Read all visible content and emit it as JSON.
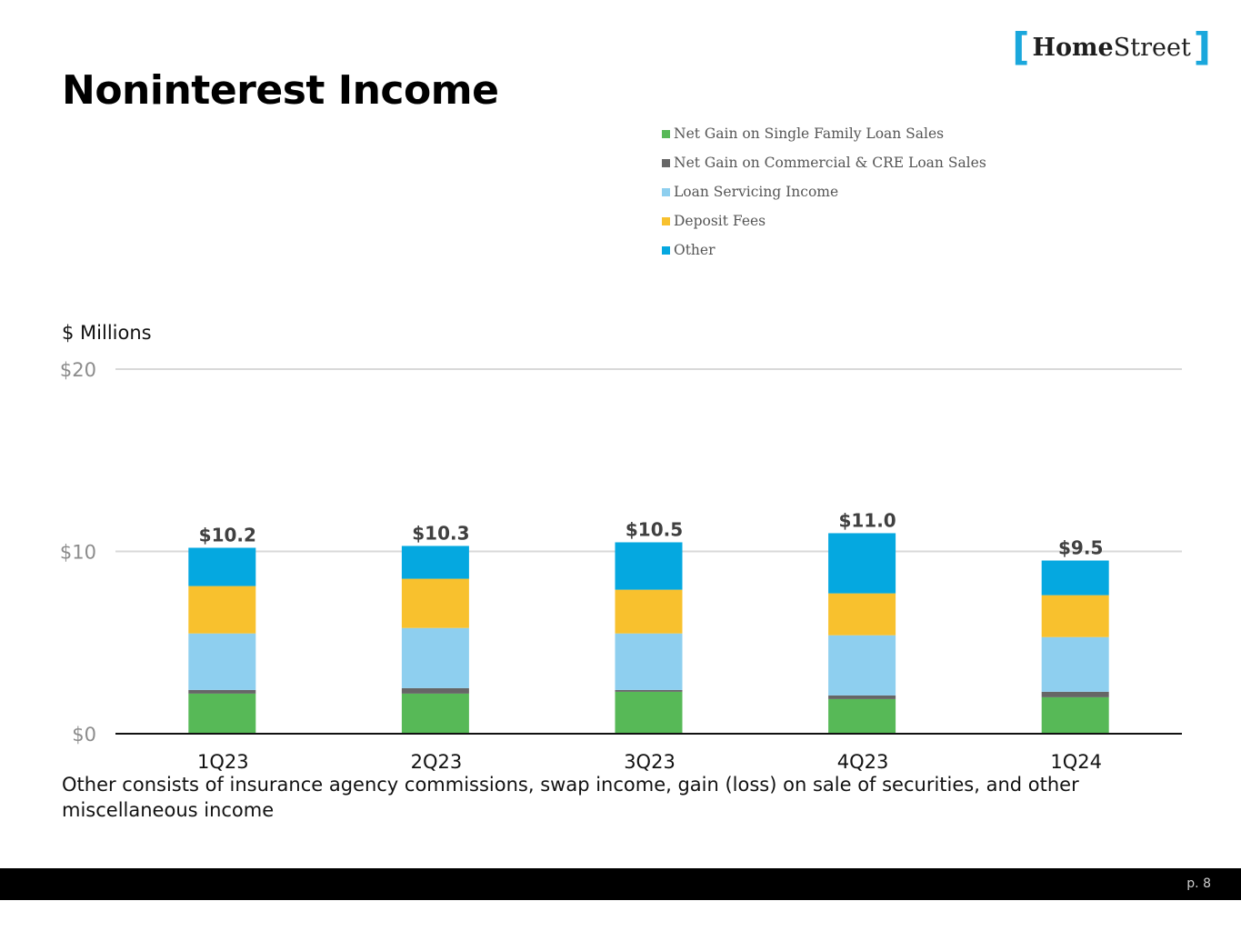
{
  "logo": {
    "left_bracket": "[",
    "part1": "Home",
    "part2": "Street",
    "right_bracket": "]"
  },
  "title": "Noninterest Income",
  "units_label": "$ Millions",
  "note": "Other consists of insurance agency commissions, swap income, gain (loss) on sale of securities, and other miscellaneous income",
  "footer": {
    "page": "p. 8"
  },
  "chart_data": {
    "type": "bar",
    "stacked": true,
    "categories": [
      "1Q23",
      "2Q23",
      "3Q23",
      "4Q23",
      "1Q24"
    ],
    "series": [
      {
        "name": "Net Gain on Single Family Loan Sales",
        "color": "#57b957",
        "values": [
          2.2,
          2.2,
          2.3,
          1.9,
          2.0
        ]
      },
      {
        "name": "Net Gain on Commercial & CRE Loan Sales",
        "color": "#666666",
        "values": [
          0.2,
          0.3,
          0.1,
          0.2,
          0.3
        ]
      },
      {
        "name": "Loan Servicing Income",
        "color": "#8ecfef",
        "values": [
          3.1,
          3.3,
          3.1,
          3.3,
          3.0
        ]
      },
      {
        "name": "Deposit Fees",
        "color": "#f8c12e",
        "values": [
          2.6,
          2.7,
          2.4,
          2.3,
          2.3
        ]
      },
      {
        "name": "Other",
        "color": "#05a8e0",
        "values": [
          2.1,
          1.8,
          2.6,
          3.3,
          1.9
        ]
      }
    ],
    "totals": [
      "$10.2",
      "$10.3",
      "$10.5",
      "$11.0",
      "$9.5"
    ],
    "total_values": [
      10.2,
      10.3,
      10.5,
      11.0,
      9.5
    ],
    "y_ticks": [
      0,
      10,
      20
    ],
    "y_tick_labels": [
      "$0",
      "$10",
      "$20"
    ],
    "ylim": [
      0,
      20
    ],
    "ylabel": "$ Millions",
    "grid": true,
    "legend_position": "top-right"
  }
}
